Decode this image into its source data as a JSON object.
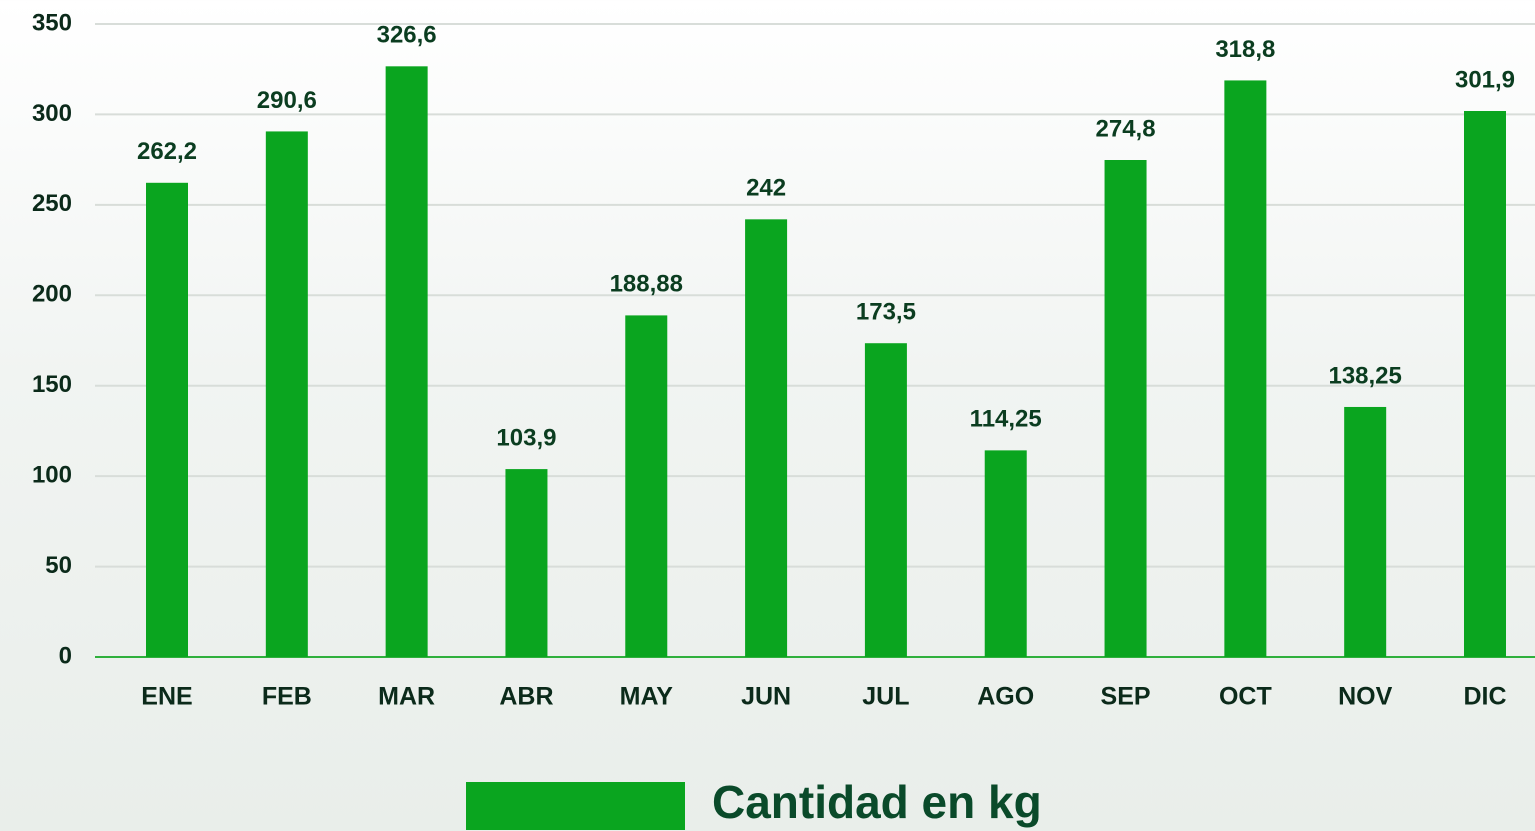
{
  "chart_data": {
    "type": "bar",
    "categories": [
      "ENE",
      "FEB",
      "MAR",
      "ABR",
      "MAY",
      "JUN",
      "JUL",
      "AGO",
      "SEP",
      "OCT",
      "NOV",
      "DIC"
    ],
    "series": [
      {
        "name": "Cantidad en kg",
        "color": "#0aa51f",
        "values": [
          262.2,
          290.6,
          326.6,
          103.9,
          188.88,
          242,
          173.5,
          114.25,
          274.8,
          318.8,
          138.25,
          301.9
        ],
        "value_labels": [
          "262,2",
          "290,6",
          "326,6",
          "103,9",
          "188,88",
          "242",
          "173,5",
          "114,25",
          "274,8",
          "318,8",
          "138,25",
          "301,9"
        ]
      }
    ],
    "ylim": [
      0,
      350
    ],
    "yticks": [
      0,
      50,
      100,
      150,
      200,
      250,
      300,
      350
    ],
    "grid": true,
    "legend": "bottom"
  }
}
